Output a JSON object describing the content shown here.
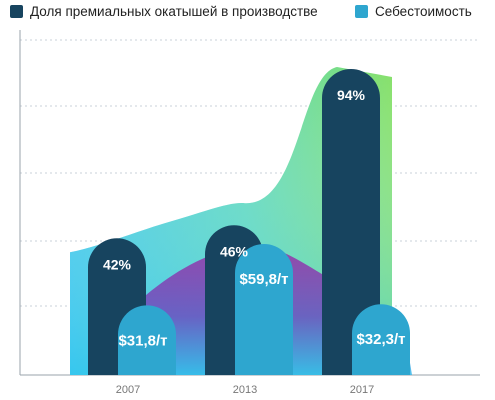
{
  "chart_data": {
    "type": "bar",
    "categories": [
      "2007",
      "2013",
      "2017"
    ],
    "series": [
      {
        "name": "Доля премиальных окатышей в производстве",
        "values": [
          42,
          46,
          94
        ],
        "labels": [
          "42%",
          "46%",
          "94%"
        ],
        "color": "#17445f"
      },
      {
        "name": "Себестоимость",
        "values": [
          31.8,
          59.8,
          32.3
        ],
        "labels": [
          "$31,8/т",
          "$59,8/т",
          "$32,3/т"
        ],
        "color": "#2ea6cf"
      }
    ],
    "grid": true,
    "legend_position": "top"
  }
}
